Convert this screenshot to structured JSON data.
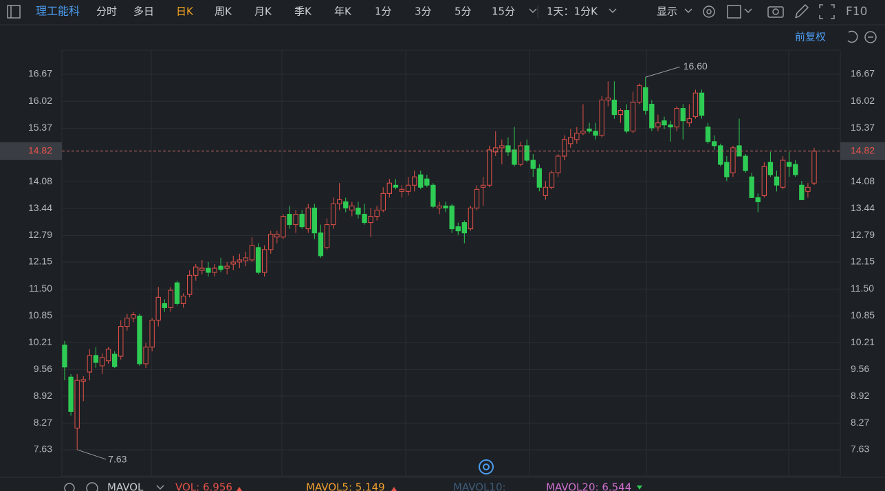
{
  "toolbar": {
    "stock": "理工能科",
    "tabs": [
      "分时",
      "多日",
      "日K",
      "周K",
      "月K",
      "季K",
      "年K",
      "1分",
      "3分",
      "5分",
      "15分"
    ],
    "period": "1天：1分K",
    "display": "显示",
    "f10": "F10",
    "adjust": "前复权"
  },
  "chart_data": {
    "type": "candlestick",
    "up_color": "#e5534b",
    "down_color": "#2ecc55",
    "ylim": [
      7.0,
      17.25
    ],
    "yticks": [
      16.67,
      16.02,
      15.37,
      14.82,
      14.08,
      13.44,
      12.79,
      12.15,
      {
        "value": 11.5,
        "label": "11.50"
      },
      10.85,
      10.21,
      9.56,
      8.92,
      8.27,
      7.63
    ],
    "last_price": 14.82,
    "max_label": {
      "value": 16.6,
      "label": "16.60"
    },
    "min_label": 7.63,
    "ohlc": [
      [
        10.15,
        10.25,
        9.3,
        9.62
      ],
      [
        9.38,
        9.45,
        8.45,
        8.55
      ],
      [
        8.15,
        9.45,
        7.63,
        9.3
      ],
      [
        9.28,
        9.4,
        8.8,
        9.32
      ],
      [
        9.5,
        10.05,
        9.3,
        9.9
      ],
      [
        9.9,
        10.1,
        9.6,
        9.73
      ],
      [
        9.65,
        9.95,
        9.45,
        9.85
      ],
      [
        9.77,
        10.1,
        9.7,
        10.05
      ],
      [
        9.93,
        10.0,
        9.6,
        9.63
      ],
      [
        9.88,
        10.75,
        9.8,
        10.6
      ],
      [
        10.6,
        10.9,
        10.5,
        10.8
      ],
      [
        10.8,
        10.95,
        10.7,
        10.88
      ],
      [
        10.85,
        10.9,
        9.65,
        9.7
      ],
      [
        9.7,
        10.2,
        9.6,
        10.1
      ],
      [
        10.1,
        10.8,
        10.0,
        10.75
      ],
      [
        10.75,
        11.55,
        10.6,
        11.3
      ],
      [
        11.15,
        11.25,
        10.95,
        11.05
      ],
      [
        11.05,
        11.55,
        10.95,
        11.47
      ],
      [
        11.65,
        11.7,
        11.1,
        11.15
      ],
      [
        11.15,
        11.4,
        11.05,
        11.33
      ],
      [
        11.37,
        11.95,
        11.3,
        11.83
      ],
      [
        11.83,
        12.1,
        11.7,
        12.03
      ],
      [
        11.95,
        12.2,
        11.85,
        12.0
      ],
      [
        12.0,
        12.15,
        11.8,
        11.9
      ],
      [
        11.9,
        12.1,
        11.8,
        12.0
      ],
      [
        12.05,
        12.25,
        11.9,
        11.97
      ],
      [
        12.0,
        12.15,
        11.85,
        12.05
      ],
      [
        12.1,
        12.3,
        11.95,
        12.15
      ],
      [
        12.15,
        12.35,
        12.0,
        12.2
      ],
      [
        12.18,
        12.4,
        12.05,
        12.25
      ],
      [
        12.2,
        12.75,
        12.15,
        12.55
      ],
      [
        12.5,
        12.6,
        11.85,
        11.9
      ],
      [
        11.9,
        12.55,
        11.8,
        12.45
      ],
      [
        12.45,
        12.9,
        12.35,
        12.82
      ],
      [
        12.75,
        12.9,
        12.6,
        12.82
      ],
      [
        12.75,
        13.3,
        12.7,
        13.25
      ],
      [
        13.3,
        13.5,
        12.95,
        13.05
      ],
      [
        13.05,
        13.4,
        12.85,
        13.3
      ],
      [
        13.3,
        13.4,
        12.95,
        13.0
      ],
      [
        12.95,
        13.55,
        12.85,
        13.45
      ],
      [
        13.45,
        13.55,
        12.7,
        12.85
      ],
      [
        12.85,
        13.05,
        12.25,
        12.3
      ],
      [
        12.5,
        13.2,
        12.45,
        13.05
      ],
      [
        13.05,
        13.7,
        12.95,
        13.55
      ],
      [
        13.55,
        14.05,
        13.4,
        13.65
      ],
      [
        13.6,
        13.7,
        13.35,
        13.45
      ],
      [
        13.4,
        13.6,
        13.25,
        13.5
      ],
      [
        13.45,
        13.6,
        13.2,
        13.3
      ],
      [
        13.3,
        13.55,
        13.05,
        13.1
      ],
      [
        13.1,
        13.45,
        12.75,
        13.25
      ],
      [
        13.25,
        13.5,
        13.15,
        13.4
      ],
      [
        13.4,
        13.95,
        13.35,
        13.8
      ],
      [
        13.8,
        14.15,
        13.7,
        14.05
      ],
      [
        14.0,
        14.15,
        13.9,
        13.95
      ],
      [
        13.85,
        14.0,
        13.7,
        13.9
      ],
      [
        13.85,
        14.2,
        13.75,
        14.0
      ],
      [
        14.0,
        14.35,
        13.85,
        14.2
      ],
      [
        14.25,
        14.35,
        13.9,
        13.95
      ],
      [
        14.15,
        14.25,
        13.95,
        14.0
      ],
      [
        14.0,
        14.05,
        13.45,
        13.49
      ],
      [
        13.45,
        13.6,
        13.3,
        13.5
      ],
      [
        13.5,
        13.6,
        13.35,
        13.45
      ],
      [
        13.5,
        13.55,
        12.85,
        12.95
      ],
      [
        13.0,
        13.1,
        12.8,
        12.9
      ],
      [
        13.1,
        13.15,
        12.6,
        12.85
      ],
      [
        12.95,
        13.5,
        12.9,
        13.45
      ],
      [
        13.45,
        14.0,
        13.4,
        13.9
      ],
      [
        13.95,
        14.2,
        13.5,
        14.0
      ],
      [
        14.0,
        14.95,
        13.95,
        14.85
      ],
      [
        14.8,
        15.3,
        14.7,
        14.9
      ],
      [
        14.9,
        15.1,
        14.5,
        14.95
      ],
      [
        14.95,
        15.15,
        14.7,
        14.8
      ],
      [
        14.85,
        15.4,
        14.45,
        14.5
      ],
      [
        14.5,
        15.05,
        14.45,
        14.95
      ],
      [
        14.95,
        15.1,
        14.55,
        14.6
      ],
      [
        14.6,
        14.75,
        14.2,
        14.4
      ],
      [
        14.4,
        14.5,
        13.85,
        13.95
      ],
      [
        13.75,
        14.1,
        13.65,
        13.95
      ],
      [
        13.95,
        14.35,
        13.9,
        14.3
      ],
      [
        14.3,
        14.75,
        14.2,
        14.7
      ],
      [
        14.7,
        15.2,
        14.6,
        15.1
      ],
      [
        15.0,
        15.35,
        14.9,
        15.15
      ],
      [
        15.1,
        15.4,
        15.0,
        15.25
      ],
      [
        15.25,
        15.95,
        15.2,
        15.3
      ],
      [
        15.35,
        15.5,
        15.25,
        15.3
      ],
      [
        15.3,
        15.5,
        15.1,
        15.2
      ],
      [
        15.2,
        16.15,
        15.15,
        16.05
      ],
      [
        16.05,
        16.5,
        15.9,
        16.1
      ],
      [
        16.05,
        16.5,
        15.6,
        15.7
      ],
      [
        15.7,
        15.85,
        15.5,
        15.8
      ],
      [
        15.8,
        15.95,
        15.25,
        15.3
      ],
      [
        15.3,
        16.25,
        15.25,
        16.0
      ],
      [
        16.0,
        16.45,
        15.95,
        16.4
      ],
      [
        16.35,
        16.6,
        15.7,
        15.8
      ],
      [
        15.95,
        16.05,
        15.3,
        15.38
      ],
      [
        15.4,
        15.7,
        15.3,
        15.5
      ],
      [
        15.55,
        15.65,
        15.35,
        15.45
      ],
      [
        15.45,
        15.55,
        15.05,
        15.4
      ],
      [
        15.4,
        15.9,
        15.3,
        15.85
      ],
      [
        15.85,
        15.95,
        15.1,
        15.55
      ],
      [
        15.5,
        15.95,
        15.4,
        15.6
      ],
      [
        15.65,
        16.3,
        15.6,
        16.22
      ],
      [
        16.22,
        16.3,
        15.6,
        15.68
      ],
      [
        15.4,
        15.5,
        15.0,
        15.05
      ],
      [
        15.05,
        15.2,
        14.85,
        14.95
      ],
      [
        14.95,
        15.0,
        14.45,
        14.5
      ],
      [
        14.55,
        14.7,
        14.1,
        14.2
      ],
      [
        14.3,
        14.95,
        14.2,
        14.9
      ],
      [
        14.95,
        15.6,
        14.7,
        14.7
      ],
      [
        14.7,
        14.75,
        14.3,
        14.35
      ],
      [
        14.2,
        14.3,
        13.7,
        13.7
      ],
      [
        13.7,
        13.8,
        13.35,
        13.6
      ],
      [
        13.75,
        14.55,
        13.7,
        14.45
      ],
      [
        14.55,
        14.8,
        14.2,
        14.25
      ],
      [
        14.2,
        14.35,
        13.85,
        14.0
      ],
      [
        13.95,
        14.7,
        13.9,
        14.6
      ],
      [
        14.55,
        14.8,
        14.2,
        14.45
      ],
      [
        14.5,
        14.6,
        14.2,
        14.25
      ],
      [
        14.0,
        14.1,
        13.65,
        13.65
      ],
      [
        13.85,
        14.05,
        13.7,
        13.95
      ],
      [
        14.05,
        14.9,
        14.0,
        14.82
      ]
    ]
  },
  "indicator": {
    "name": "MAVOL",
    "vol": "VOL: 6.956",
    "mavol5": "MAVOL5: 5.149",
    "mavol10": "MAVOL10:",
    "mavol20": "MAVOL20: 6.544"
  }
}
